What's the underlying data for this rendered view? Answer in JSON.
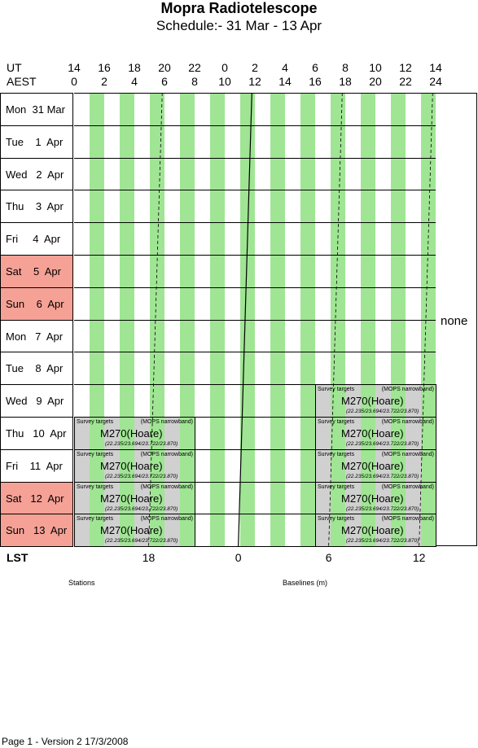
{
  "title": "Mopra Radiotelescope",
  "subtitle": "Schedule:- 31 Mar - 13 Apr",
  "header": {
    "ut_label": "UT",
    "aest_label": "AEST",
    "ut_ticks": [
      "14",
      "16",
      "18",
      "20",
      "22",
      "0",
      "2",
      "4",
      "6",
      "8",
      "10",
      "12",
      "14"
    ],
    "aest_ticks": [
      "0",
      "2",
      "4",
      "6",
      "8",
      "10",
      "12",
      "14",
      "16",
      "18",
      "20",
      "22",
      "24"
    ]
  },
  "days": [
    {
      "label": "Mon  31 Mar",
      "weekend": false
    },
    {
      "label": "Tue    1  Apr",
      "weekend": false
    },
    {
      "label": "Wed   2  Apr",
      "weekend": false
    },
    {
      "label": "Thu    3  Apr",
      "weekend": false
    },
    {
      "label": "Fri     4  Apr",
      "weekend": false
    },
    {
      "label": "Sat    5  Apr",
      "weekend": true
    },
    {
      "label": "Sun    6  Apr",
      "weekend": true
    },
    {
      "label": "Mon   7  Apr",
      "weekend": false
    },
    {
      "label": "Tue    8  Apr",
      "weekend": false
    },
    {
      "label": "Wed   9  Apr",
      "weekend": false
    },
    {
      "label": "Thu   10  Apr",
      "weekend": false
    },
    {
      "label": "Fri    11  Apr",
      "weekend": false
    },
    {
      "label": "Sat   12  Apr",
      "weekend": true
    },
    {
      "label": "Sun   13  Apr",
      "weekend": true
    }
  ],
  "colors": {
    "weekend": "#f6a196",
    "green_band": "#a0e594",
    "block_gray": "#d0d0d0"
  },
  "block_text": {
    "left": "Survey targets",
    "right": "(MOPS narrowband)",
    "main": "M270(Hoare)",
    "freq": "(22.235/23.694/23.722/23.870)"
  },
  "blocks": [
    {
      "day": 9,
      "aest_start": 16,
      "aest_end": 24
    },
    {
      "day": 10,
      "aest_start": 0,
      "aest_end": 8
    },
    {
      "day": 10,
      "aest_start": 16,
      "aest_end": 24
    },
    {
      "day": 11,
      "aest_start": 0,
      "aest_end": 8
    },
    {
      "day": 11,
      "aest_start": 16,
      "aest_end": 24
    },
    {
      "day": 12,
      "aest_start": 0,
      "aest_end": 8
    },
    {
      "day": 12,
      "aest_start": 16,
      "aest_end": 24
    },
    {
      "day": 13,
      "aest_start": 0,
      "aest_end": 8
    },
    {
      "day": 13,
      "aest_start": 16,
      "aest_end": 24
    }
  ],
  "side_note": "none",
  "lst": {
    "label": "LST",
    "ticks": [
      "18",
      "0",
      "6",
      "12"
    ]
  },
  "bottom_labels": {
    "stations": "Stations",
    "baselines": "Baselines (m)"
  },
  "footer": "Page 1 - Version 2  17/3/2008"
}
